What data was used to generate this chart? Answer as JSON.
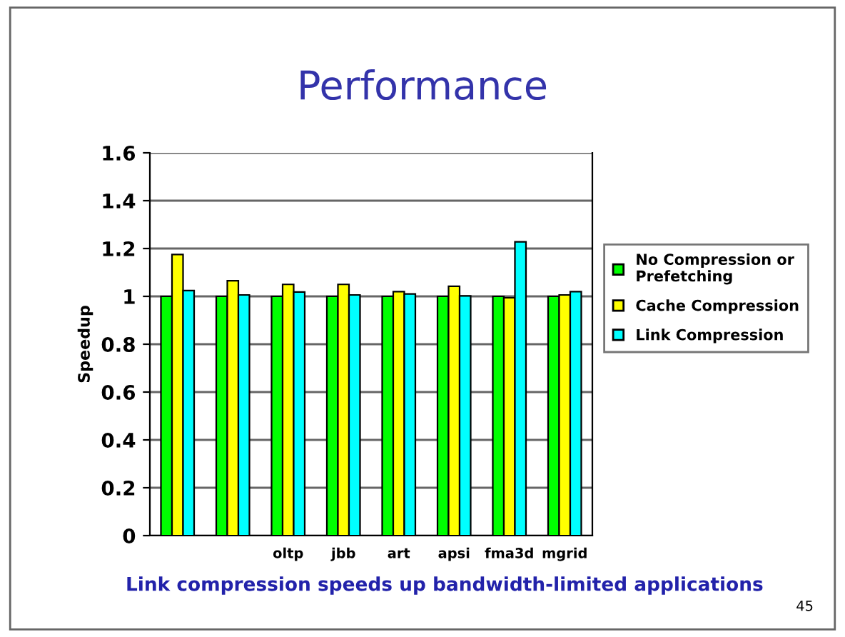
{
  "chart_data": {
    "type": "bar",
    "title": "Performance",
    "ylabel": "Speedup",
    "categories": [
      null,
      null,
      "oltp",
      "jbb",
      "art",
      "apsi",
      "fma3d",
      "mgrid"
    ],
    "series": [
      {
        "name": "No Compression or\nPrefetching",
        "color": "#00ff00",
        "values": [
          1,
          1,
          1,
          1,
          1,
          1,
          1,
          1
        ]
      },
      {
        "name": "Cache Compression",
        "color": "#ffff00",
        "values": [
          1.175,
          1.065,
          1.05,
          1.05,
          1.02,
          1.042,
          0.994,
          1.006
        ]
      },
      {
        "name": "Link Compression",
        "color": "#00ffff",
        "values": [
          1.024,
          1.006,
          1.018,
          1.006,
          1.01,
          1.002,
          1.228,
          1.02
        ]
      }
    ],
    "ylim": [
      0,
      1.6
    ],
    "yticks": [
      0,
      0.2,
      0.4,
      0.6,
      0.8,
      1,
      1.2,
      1.4,
      1.6
    ],
    "grid": "y",
    "legend": "right",
    "annotations": [
      "Link compression speeds up bandwidth-limited applications",
      "45"
    ]
  }
}
